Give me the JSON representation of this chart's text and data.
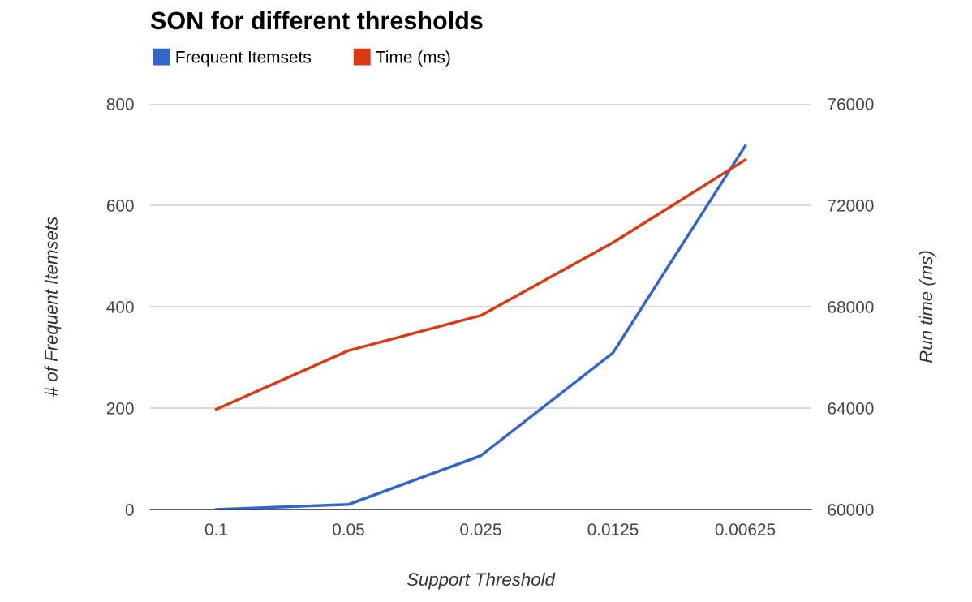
{
  "chart_data": {
    "type": "line",
    "title": "SON for different thresholds",
    "xlabel": "Support Threshold",
    "ylabel": "# of Frequent Itemsets",
    "y2label": "Run time (ms)",
    "categories": [
      "0.1",
      "0.05",
      "0.025",
      "0.0125",
      "0.00625"
    ],
    "series": [
      {
        "name": "Frequent Itemsets",
        "color": "#3366cc",
        "values": [
          0,
          10,
          106,
          309,
          717
        ]
      },
      {
        "name": "Time (ms)",
        "color": "#dc3912",
        "axis": "y2",
        "values": [
          63950,
          66270,
          67650,
          70530,
          73790
        ]
      }
    ],
    "ylim": [
      0,
      800
    ],
    "yticks": [
      0,
      200,
      400,
      600,
      800
    ],
    "y2lim": [
      60000,
      76000
    ],
    "y2ticks": [
      60000,
      64000,
      68000,
      72000,
      76000
    ],
    "grid": "y",
    "legend": "top left",
    "marker": "none",
    "line_style": "solid"
  }
}
